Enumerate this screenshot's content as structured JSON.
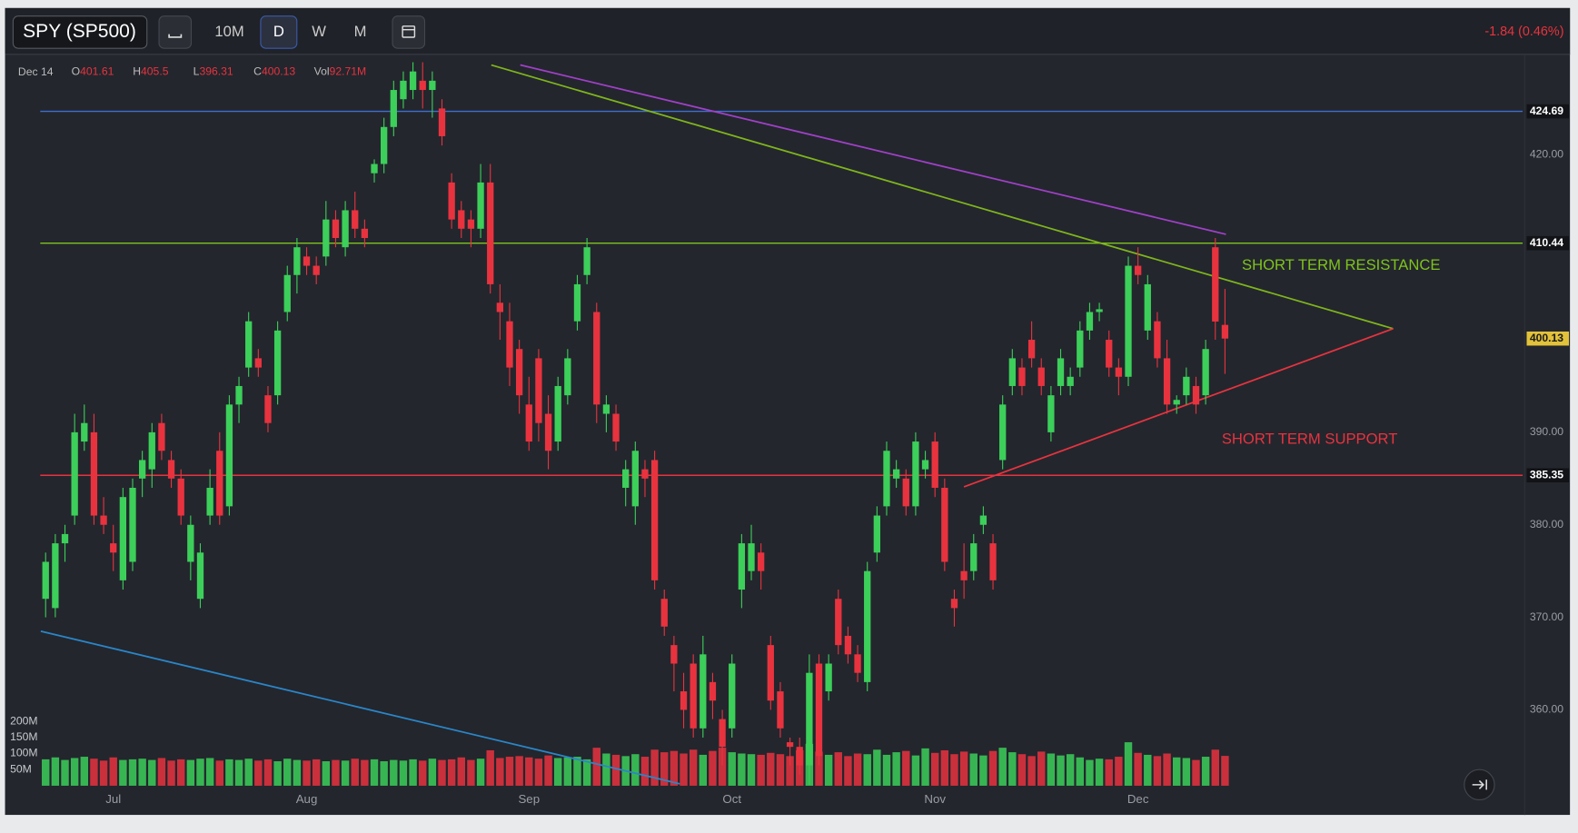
{
  "toolbar": {
    "symbol": "SPY (SP500)",
    "intervals": [
      "10M",
      "D",
      "W",
      "M"
    ],
    "change": "-1.84 (0.46%)"
  },
  "legend_bar": {
    "date": "Dec 14",
    "labels": [
      "O",
      "H",
      "L",
      "C",
      "Vol"
    ],
    "last_volume_label": "92.71M"
  },
  "chart_data": {
    "type": "candlestick",
    "up_color": "#3ccf5a",
    "down_color": "#e8333f",
    "grid": false,
    "xlim": [
      -4.2,
      153
    ],
    "ylim": [
      351.8,
      430.2
    ],
    "vlim": [
      0,
      200
    ],
    "xticks": [
      {
        "value": 7,
        "label": "Jul"
      },
      {
        "value": 27,
        "label": "Aug"
      },
      {
        "value": 50,
        "label": "Sep"
      },
      {
        "value": 71,
        "label": "Oct"
      },
      {
        "value": 92,
        "label": "Nov"
      },
      {
        "value": 113,
        "label": "Dec"
      }
    ],
    "yticks": [
      {
        "value": 360,
        "label": "360.00"
      },
      {
        "value": 370,
        "label": "370.00"
      },
      {
        "value": 380,
        "label": "380.00"
      },
      {
        "value": 390,
        "label": "390.00"
      },
      {
        "value": 420,
        "label": "420.00"
      }
    ],
    "vticks": [
      {
        "value": 50,
        "label": "50M"
      },
      {
        "value": 100,
        "label": "100M"
      },
      {
        "value": 150,
        "label": "150M"
      },
      {
        "value": 200,
        "label": "200M"
      }
    ],
    "levels": [
      {
        "value": 424.69,
        "color": "#3d6fd1"
      },
      {
        "value": 410.44,
        "color": "#7fc31c"
      },
      {
        "value": 385.35,
        "color": "#e8333f"
      }
    ],
    "trendlines": [
      {
        "color": "#7fb51c",
        "points": [
          [
            46.1,
            429.7
          ],
          [
            139.4,
            401.2
          ]
        ]
      },
      {
        "color": "#a040c8",
        "points": [
          [
            49.1,
            429.7
          ],
          [
            122.1,
            411.4
          ]
        ]
      },
      {
        "color": "#e8333f",
        "points": [
          [
            95,
            384.1
          ],
          [
            139.4,
            401.2
          ]
        ]
      },
      {
        "color": "#2a86c8",
        "points": [
          [
            -0.5,
            368.5
          ],
          [
            65.6,
            352
          ]
        ]
      }
    ],
    "annotations": [
      {
        "text": "SHORT TERM RESISTANCE",
        "color": "#7fc31c"
      },
      {
        "text": "SHORT TERM SUPPORT",
        "color": "#e8333f"
      }
    ],
    "ohlc": [
      [
        372,
        377,
        370,
        376
      ],
      [
        371,
        379,
        370,
        378
      ],
      [
        378,
        380,
        376,
        379
      ],
      [
        381,
        392,
        380,
        390
      ],
      [
        389,
        393,
        388,
        391
      ],
      [
        390,
        392,
        380,
        381
      ],
      [
        381,
        383,
        379,
        380
      ],
      [
        378,
        380,
        375,
        377
      ],
      [
        374,
        384,
        373,
        383
      ],
      [
        376,
        385,
        375,
        384
      ],
      [
        385,
        388,
        383,
        387
      ],
      [
        386,
        391,
        384,
        390
      ],
      [
        391,
        392,
        387,
        388
      ],
      [
        387,
        388,
        384,
        385
      ],
      [
        385,
        386,
        380,
        381
      ],
      [
        376,
        381,
        374,
        380
      ],
      [
        372,
        378,
        371,
        377
      ],
      [
        381,
        386,
        380,
        384
      ],
      [
        388,
        390,
        380,
        381
      ],
      [
        382,
        394,
        381,
        393
      ],
      [
        393,
        396,
        391,
        395
      ],
      [
        397,
        403,
        396,
        402
      ],
      [
        398,
        399,
        396,
        397
      ],
      [
        394,
        395,
        390,
        391
      ],
      [
        394,
        402,
        393,
        401
      ],
      [
        403,
        408,
        402,
        407
      ],
      [
        407,
        411,
        405,
        410
      ],
      [
        409,
        410,
        407,
        408
      ],
      [
        408,
        409,
        406,
        407
      ],
      [
        409,
        415,
        408,
        413
      ],
      [
        413,
        414,
        410,
        411
      ],
      [
        410,
        415,
        409,
        414
      ],
      [
        414,
        416,
        411,
        412
      ],
      [
        412,
        413,
        410,
        411
      ],
      [
        418,
        419.5,
        417,
        419
      ],
      [
        419,
        424,
        418,
        423
      ],
      [
        423,
        428,
        422,
        427
      ],
      [
        426,
        429,
        425,
        428
      ],
      [
        427,
        430,
        426,
        429
      ],
      [
        428,
        430,
        425,
        427
      ],
      [
        427,
        429,
        424,
        428
      ],
      [
        425,
        426,
        421,
        422
      ],
      [
        417,
        418,
        412,
        413
      ],
      [
        414,
        415,
        411,
        412
      ],
      [
        413,
        414,
        410,
        412
      ],
      [
        412,
        419,
        411,
        417
      ],
      [
        417,
        419,
        405,
        406
      ],
      [
        404,
        406,
        400,
        403
      ],
      [
        402,
        404,
        395,
        397
      ],
      [
        399,
        400,
        392,
        394
      ],
      [
        393,
        396,
        388,
        389
      ],
      [
        398,
        399,
        389,
        391
      ],
      [
        392,
        394,
        386,
        388
      ],
      [
        389,
        396,
        388,
        395
      ],
      [
        394,
        399,
        393,
        398
      ],
      [
        402,
        407,
        401,
        406
      ],
      [
        407,
        411,
        406,
        410
      ],
      [
        403,
        404,
        391,
        393
      ],
      [
        392,
        394,
        390,
        393
      ],
      [
        392,
        393,
        388,
        389
      ],
      [
        384,
        387,
        382,
        386
      ],
      [
        382,
        389,
        380,
        388
      ],
      [
        386,
        387,
        383,
        385
      ],
      [
        387,
        388,
        373,
        374
      ],
      [
        372,
        373,
        368,
        369
      ],
      [
        367,
        368,
        362,
        365
      ],
      [
        362,
        364,
        358,
        360
      ],
      [
        365,
        366,
        357,
        358
      ],
      [
        358,
        368,
        357,
        366
      ],
      [
        363,
        364,
        359,
        361
      ],
      [
        359,
        360,
        354,
        356
      ],
      [
        358,
        366,
        357,
        365
      ],
      [
        373,
        379,
        371,
        378
      ],
      [
        375,
        380,
        374,
        378
      ],
      [
        377,
        378,
        373,
        375
      ],
      [
        367,
        368,
        360,
        361
      ],
      [
        362,
        363,
        357,
        358
      ],
      [
        356.5,
        357,
        354,
        356
      ],
      [
        356,
        357,
        353,
        354
      ],
      [
        354,
        366,
        351.9,
        364
      ],
      [
        365,
        366,
        354,
        355
      ],
      [
        362,
        366,
        361,
        365
      ],
      [
        372,
        373,
        366,
        367
      ],
      [
        368,
        369,
        365,
        366
      ],
      [
        366,
        367,
        363,
        364
      ],
      [
        363,
        376,
        362,
        375
      ],
      [
        377,
        382,
        376,
        381
      ],
      [
        382,
        389,
        381,
        388
      ],
      [
        385,
        387,
        384,
        386
      ],
      [
        385,
        386,
        381,
        382
      ],
      [
        382,
        390,
        381,
        389
      ],
      [
        386,
        388,
        385,
        387
      ],
      [
        389,
        390,
        383,
        384
      ],
      [
        384,
        385,
        375,
        376
      ],
      [
        372,
        373,
        369,
        371
      ],
      [
        375,
        378,
        372,
        374
      ],
      [
        375,
        379,
        374,
        378
      ],
      [
        380,
        382,
        379,
        381
      ],
      [
        378,
        379,
        373,
        374
      ],
      [
        387,
        394,
        386,
        393
      ],
      [
        395,
        399,
        394,
        398
      ],
      [
        397,
        398,
        394,
        395
      ],
      [
        400,
        402,
        397,
        398
      ],
      [
        397,
        398,
        394,
        395
      ],
      [
        390,
        395,
        389,
        394
      ],
      [
        395,
        399,
        394,
        398
      ],
      [
        395,
        397,
        394,
        396
      ],
      [
        397,
        402,
        396,
        401
      ],
      [
        401,
        404,
        400,
        403
      ],
      [
        403,
        404,
        402,
        403.3
      ],
      [
        400,
        401,
        396,
        397
      ],
      [
        397,
        398,
        394,
        396
      ],
      [
        396,
        409,
        395,
        408
      ],
      [
        408,
        410,
        406,
        407
      ],
      [
        401,
        407,
        400,
        406
      ],
      [
        402,
        403,
        397,
        398
      ],
      [
        398,
        400,
        392,
        393
      ],
      [
        393,
        394,
        392,
        393.5
      ],
      [
        394,
        397,
        393,
        396
      ],
      [
        395,
        396,
        392,
        393
      ],
      [
        394,
        400,
        393,
        399
      ],
      [
        410,
        411,
        400,
        401.97
      ],
      [
        401.61,
        405.5,
        396.31,
        400.13
      ]
    ],
    "volume": [
      82,
      88,
      80,
      86,
      90,
      84,
      78,
      88,
      80,
      82,
      84,
      80,
      86,
      78,
      82,
      80,
      84,
      86,
      78,
      82,
      80,
      84,
      78,
      82,
      76,
      84,
      80,
      78,
      82,
      76,
      80,
      78,
      84,
      80,
      82,
      76,
      80,
      78,
      82,
      78,
      84,
      80,
      82,
      88,
      80,
      84,
      110,
      86,
      90,
      92,
      88,
      84,
      94,
      86,
      88,
      90,
      82,
      118,
      100,
      96,
      92,
      98,
      90,
      112,
      104,
      108,
      100,
      112,
      96,
      108,
      118,
      104,
      100,
      98,
      96,
      102,
      98,
      92,
      110,
      130,
      106,
      96,
      104,
      92,
      100,
      98,
      112,
      96,
      104,
      108,
      94,
      116,
      102,
      110,
      98,
      106,
      100,
      94,
      108,
      118,
      104,
      98,
      92,
      106,
      100,
      94,
      98,
      88,
      80,
      84,
      82,
      90,
      135,
      102,
      96,
      92,
      100,
      88,
      86,
      80,
      90,
      112,
      92.71
    ]
  }
}
